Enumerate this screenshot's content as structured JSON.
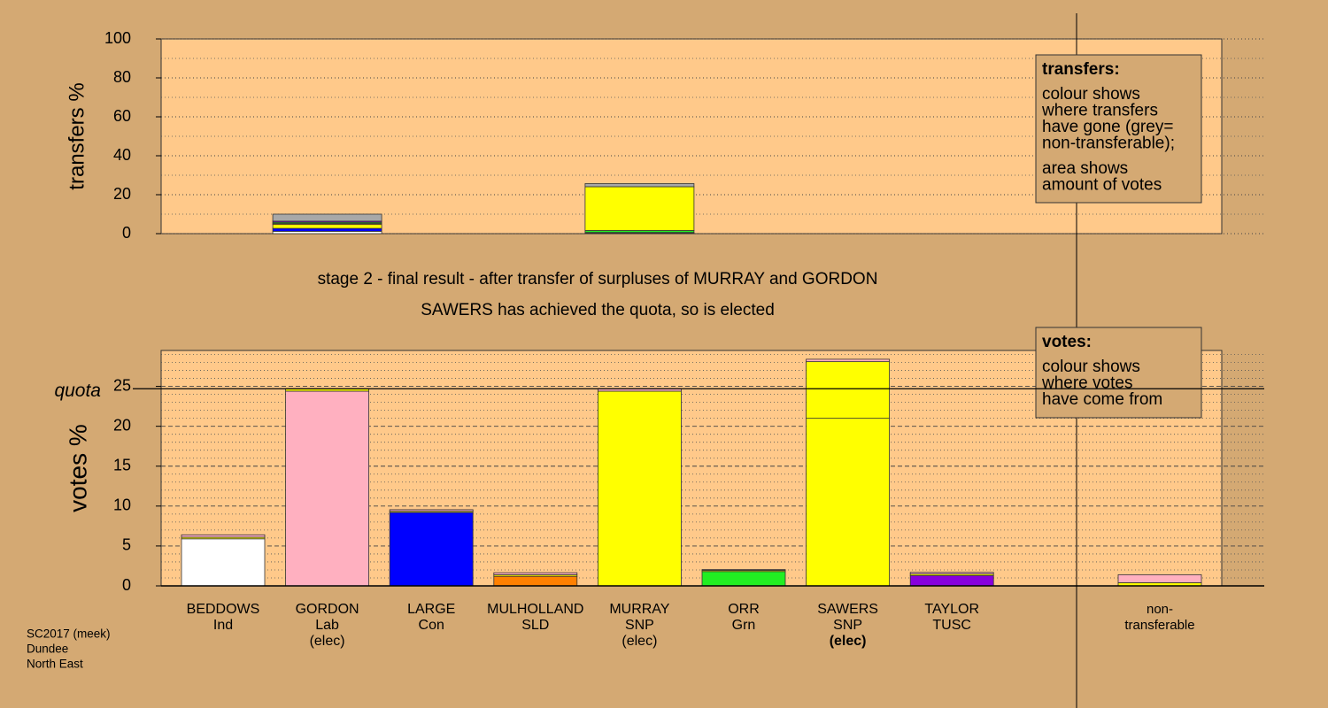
{
  "chart_data": [
    {
      "type": "bar",
      "stacked": true,
      "ylabel": "transfers %",
      "ylim": [
        0,
        100
      ],
      "yticks": [
        0,
        20,
        40,
        60,
        80,
        100
      ],
      "minor_yticks": [
        10,
        30,
        50,
        70,
        90
      ],
      "series": [
        {
          "color": "#ffffff",
          "values": [
            null,
            1.2,
            null,
            null,
            0.3,
            null,
            null,
            null,
            null
          ]
        },
        {
          "color": "#0000ff",
          "values": [
            null,
            1.5,
            null,
            null,
            0.3,
            null,
            null,
            null,
            null
          ]
        },
        {
          "color": "#ffff00",
          "values": [
            null,
            2,
            null,
            null,
            null,
            null,
            null,
            null,
            null
          ]
        },
        {
          "color": "#ff8000",
          "values": [
            null,
            0.5,
            null,
            null,
            null,
            null,
            null,
            null,
            null
          ]
        },
        {
          "color": "#22ee22",
          "values": [
            null,
            0.6,
            null,
            null,
            1,
            null,
            null,
            null,
            null
          ]
        },
        {
          "color": "#8800dd",
          "values": [
            null,
            0.6,
            null,
            null,
            null,
            null,
            null,
            null,
            null
          ]
        },
        {
          "color": "#ffff00",
          "values": [
            null,
            null,
            null,
            null,
            22.5,
            null,
            null,
            null,
            null
          ]
        },
        {
          "color": "#a8a8a8",
          "values": [
            null,
            3.6,
            null,
            null,
            1.6,
            null,
            null,
            null,
            null
          ]
        }
      ],
      "legend": {
        "title": "transfers:",
        "lines": [
          "colour shows",
          "where transfers",
          "have gone (grey=",
          "non-transferable);",
          "area shows",
          "amount of votes"
        ]
      }
    },
    {
      "type": "bar",
      "stacked": true,
      "ylabel": "votes %",
      "title": "stage 2 - final result - after transfer of surpluses of MURRAY and GORDON",
      "subtitle": "SAWERS has achieved the quota, so is elected",
      "categories": [
        [
          "BEDDOWS",
          "Ind"
        ],
        [
          "GORDON",
          "Lab",
          "(elec)"
        ],
        [
          "LARGE",
          "Con"
        ],
        [
          "MULHOLLAND",
          "SLD"
        ],
        [
          "MURRAY",
          "SNP",
          "(elec)"
        ],
        [
          "ORR",
          "Grn"
        ],
        [
          "SAWERS",
          "SNP",
          "(elec)"
        ],
        [
          "TAYLOR",
          "TUSC"
        ],
        [
          "non-",
          "transferable"
        ]
      ],
      "elected_bold": [
        false,
        false,
        false,
        false,
        false,
        false,
        true,
        false,
        false
      ],
      "ylim": [
        0,
        29.5
      ],
      "yticks": [
        0,
        5,
        10,
        15,
        20,
        25
      ],
      "minor_yticks": [
        1,
        2,
        3,
        4,
        6,
        7,
        8,
        9,
        11,
        12,
        13,
        14,
        16,
        17,
        18,
        19,
        21,
        22,
        23,
        24,
        26,
        27,
        28,
        29
      ],
      "quota": {
        "label": "quota",
        "value": 24.7
      },
      "series": [
        {
          "colors": [
            "#ffffff",
            "#ffb0c0",
            "#0000ff",
            "#ff8000",
            "#ffff00",
            "#22ee22",
            "#ffff00",
            "#8800dd",
            null
          ],
          "values": [
            5.9,
            24.4,
            9.2,
            1.2,
            24.4,
            1.8,
            21,
            1.3,
            null
          ]
        },
        {
          "color": "#ffff00",
          "values": [
            0.2,
            0.3,
            0.15,
            0.2,
            null,
            0.15,
            7.1,
            0.2,
            0.4
          ]
        },
        {
          "color": "#ffb0c0",
          "values": [
            0.3,
            null,
            0.2,
            0.25,
            0.3,
            0.1,
            0.3,
            0.2,
            1
          ]
        }
      ],
      "legend": {
        "title": "votes:",
        "lines": [
          "colour shows",
          "where votes",
          "have come from"
        ]
      }
    }
  ],
  "footer": [
    "SC2017 (meek)",
    "Dundee",
    "North East"
  ]
}
